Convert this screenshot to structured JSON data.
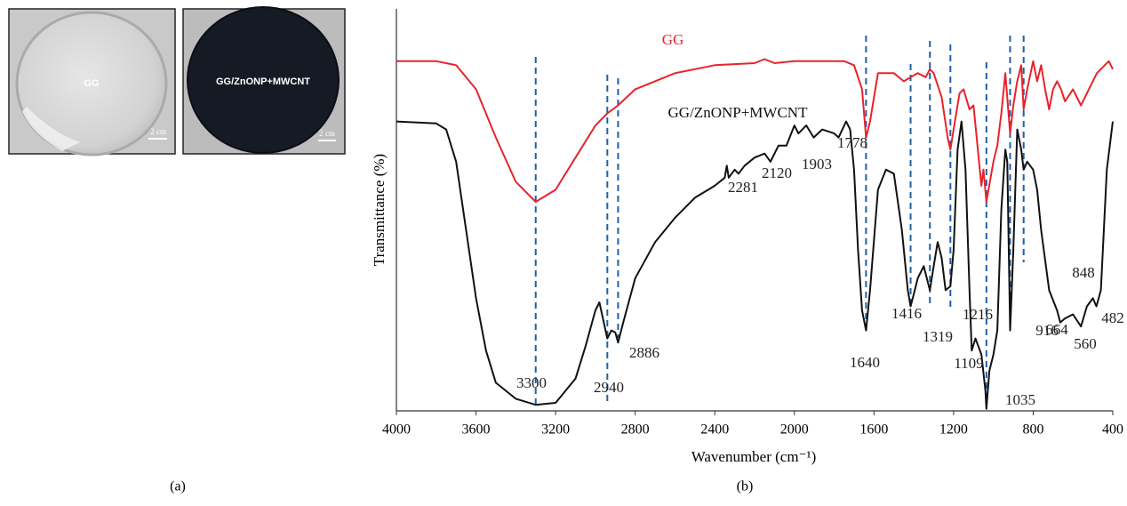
{
  "chart_data": {
    "type": "line",
    "x_label": "Wavenumber (cm⁻¹)",
    "y_label": "Transmittance (%)",
    "xlim": [
      4000,
      400
    ],
    "xticks": [
      4000,
      3600,
      3200,
      2800,
      2400,
      2000,
      1600,
      1200,
      800,
      400
    ],
    "ylim": [
      0,
      100
    ],
    "series": [
      {
        "name": "GG",
        "color": "#e8232b",
        "x": [
          4000,
          3800,
          3700,
          3600,
          3500,
          3400,
          3300,
          3200,
          3100,
          3000,
          2940,
          2886,
          2800,
          2600,
          2400,
          2200,
          2150,
          2100,
          2000,
          1800,
          1750,
          1700,
          1660,
          1640,
          1620,
          1580,
          1500,
          1450,
          1416,
          1380,
          1340,
          1319,
          1300,
          1260,
          1230,
          1216,
          1200,
          1170,
          1150,
          1120,
          1100,
          1060,
          1050,
          1035,
          1000,
          980,
          960,
          940,
          916,
          900,
          880,
          860,
          848,
          830,
          800,
          780,
          760,
          740,
          720,
          700,
          680,
          660,
          640,
          600,
          560,
          520,
          480,
          440,
          420,
          400
        ],
        "values": [
          87,
          87,
          86,
          80,
          68,
          57,
          52,
          55,
          63,
          71,
          74,
          76,
          80,
          84,
          86,
          86.5,
          87.5,
          86.5,
          87,
          87,
          87,
          86,
          80,
          68,
          72,
          84,
          84,
          82,
          83,
          84,
          83,
          85,
          84,
          78,
          68,
          65,
          70,
          79,
          80,
          75,
          76,
          56,
          60,
          52,
          62,
          66,
          74,
          84,
          69,
          76,
          82,
          86,
          75,
          80,
          87,
          82,
          86,
          80,
          75,
          80,
          82,
          80,
          77,
          80,
          76,
          80,
          84,
          86,
          87,
          85
        ]
      },
      {
        "name": "GG/ZnONP+MWCNT",
        "color": "#111111",
        "x": [
          4000,
          3800,
          3750,
          3700,
          3650,
          3600,
          3550,
          3500,
          3400,
          3300,
          3200,
          3100,
          3050,
          3000,
          2980,
          2940,
          2920,
          2900,
          2886,
          2860,
          2800,
          2700,
          2600,
          2500,
          2400,
          2350,
          2340,
          2330,
          2300,
          2281,
          2250,
          2200,
          2150,
          2120,
          2080,
          2040,
          2000,
          1980,
          1940,
          1903,
          1860,
          1800,
          1778,
          1740,
          1720,
          1700,
          1680,
          1660,
          1640,
          1620,
          1580,
          1540,
          1500,
          1460,
          1430,
          1416,
          1400,
          1380,
          1350,
          1319,
          1300,
          1280,
          1260,
          1240,
          1216,
          1200,
          1180,
          1160,
          1140,
          1120,
          1109,
          1090,
          1060,
          1040,
          1035,
          1020,
          1000,
          980,
          960,
          940,
          930,
          916,
          900,
          880,
          860,
          848,
          830,
          800,
          780,
          760,
          720,
          680,
          664,
          640,
          600,
          560,
          530,
          500,
          482,
          460,
          430,
          400
        ],
        "values": [
          72,
          71.5,
          70,
          62,
          45,
          28,
          15,
          7,
          3,
          1.5,
          2,
          8,
          16,
          25,
          27,
          18,
          20,
          19.5,
          17,
          22,
          33,
          42,
          48,
          53,
          56,
          58,
          61,
          58,
          60,
          59,
          61,
          63,
          64,
          62,
          66,
          66,
          71,
          69,
          71,
          68,
          70,
          69,
          68,
          72,
          70,
          60,
          40,
          25,
          20,
          30,
          55,
          60,
          59,
          45,
          30,
          26,
          29,
          33,
          36,
          30,
          36,
          42,
          38,
          30,
          31,
          40,
          65,
          72,
          60,
          30,
          15,
          18,
          14,
          5,
          0.5,
          10,
          14,
          20,
          50,
          65,
          62,
          20,
          40,
          70,
          65,
          60,
          62,
          60,
          55,
          45,
          30,
          25,
          22,
          23,
          24,
          21,
          26,
          28,
          26,
          30,
          60,
          72
        ]
      }
    ],
    "peak_labels": [
      3300,
      2940,
      2886,
      2281,
      2120,
      1903,
      1778,
      1640,
      1416,
      1319,
      1216,
      1109,
      1035,
      916,
      848,
      664,
      560,
      482
    ]
  },
  "panels": {
    "photo_labels": [
      "GG",
      "GG/ZnONP+MWCNT"
    ],
    "scale_bar": "2 cm",
    "caption_a": "(a)",
    "caption_b": "(b)"
  }
}
